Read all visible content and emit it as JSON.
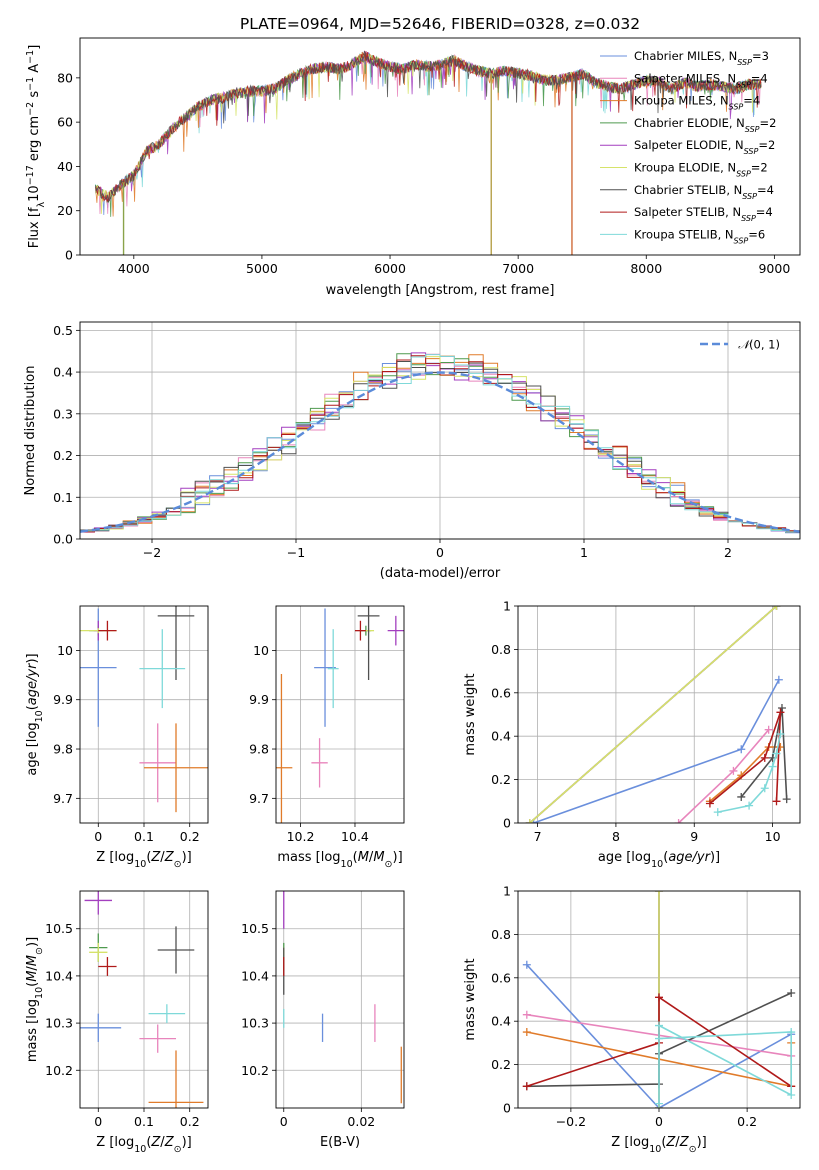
{
  "title": "PLATE=0964, MJD=52646, FIBERID=0328, z=0.032",
  "models": [
    {
      "name": "Chabrier MILES",
      "nssp": "3",
      "color": "#6a8fdc"
    },
    {
      "name": "Salpeter MILES",
      "nssp": "4",
      "color": "#e885bc"
    },
    {
      "name": "Kroupa MILES",
      "nssp": "4",
      "color": "#e07b2a"
    },
    {
      "name": "Chabrier ELODIE",
      "nssp": "2",
      "color": "#4f9a4f"
    },
    {
      "name": "Salpeter ELODIE",
      "nssp": "2",
      "color": "#a33fbf"
    },
    {
      "name": "Kroupa ELODIE",
      "nssp": "2",
      "color": "#d6e36a"
    },
    {
      "name": "Chabrier STELIB",
      "nssp": "4",
      "color": "#505050"
    },
    {
      "name": "Salpeter STELIB",
      "nssp": "4",
      "color": "#b01a1a"
    },
    {
      "name": "Kroupa STELIB",
      "nssp": "6",
      "color": "#7fd9d9"
    }
  ],
  "legend_suffix": "N",
  "legend_sub": "SSP",
  "chart_data": [
    {
      "id": "spectrum",
      "type": "line",
      "xlabel": "wavelength [Angstrom, rest frame]",
      "ylabel": "Flux [f",
      "xlim": [
        3580,
        9200
      ],
      "ylim": [
        0,
        98
      ],
      "xticks": [
        4000,
        5000,
        6000,
        7000,
        8000,
        9000
      ],
      "yticks": [
        0,
        20,
        40,
        60,
        80
      ],
      "grid": false,
      "legend": "top-right",
      "x": [
        3700,
        3800,
        3900,
        4000,
        4100,
        4200,
        4300,
        4400,
        4500,
        4600,
        4700,
        4800,
        4900,
        5000,
        5100,
        5200,
        5300,
        5400,
        5500,
        5600,
        5700,
        5800,
        5900,
        6000,
        6100,
        6200,
        6300,
        6400,
        6500,
        6600,
        6700,
        6800,
        6900,
        7000,
        7100,
        7200,
        7300,
        7400,
        7500,
        7600,
        7700,
        7800,
        7900,
        8000,
        8100,
        8200,
        8300,
        8400,
        8500,
        8600,
        8700,
        8800,
        8900
      ],
      "y": [
        30,
        26,
        32,
        36,
        47,
        50,
        57,
        62,
        67,
        70,
        71,
        73,
        74,
        74,
        75,
        79,
        82,
        84,
        85,
        84,
        86,
        90,
        87,
        85,
        84,
        86,
        85,
        86,
        88,
        85,
        83,
        82,
        83,
        82,
        81,
        79,
        79,
        80,
        82,
        78,
        76,
        75,
        77,
        79,
        78,
        75,
        78,
        76,
        77,
        76,
        75,
        77,
        77
      ],
      "dips": [
        {
          "x": 3920,
          "to": 0
        },
        {
          "x": 6790,
          "to": 0
        },
        {
          "x": 7420,
          "to": 0
        }
      ]
    },
    {
      "id": "residuals",
      "type": "histogram",
      "xlabel": "(data-model)/error",
      "ylabel": "Normed distribution",
      "xlim": [
        -2.5,
        2.5
      ],
      "ylim": [
        0,
        0.52
      ],
      "xticks": [
        -2,
        -1,
        0,
        1,
        2
      ],
      "yticks": [
        0.0,
        0.1,
        0.2,
        0.3,
        0.4,
        0.5
      ],
      "grid": true,
      "legend": "top-right",
      "reference": {
        "label": "N(0, 1)",
        "mean": 0,
        "sigma": 1,
        "color": "#5b8bd9"
      }
    },
    {
      "id": "age-vs-Z",
      "type": "errorbar",
      "xlabel": "Z [log10(Z/Z⊙)]",
      "ylabel": "age  [log10(age/yr)]",
      "xlim": [
        -0.04,
        0.24
      ],
      "ylim": [
        9.65,
        10.09
      ],
      "xticks": [
        0.0,
        0.1,
        0.2
      ],
      "yticks": [
        9.7,
        9.8,
        9.9,
        10.0
      ],
      "grid": true,
      "points": [
        {
          "x": 0.0,
          "xerr": 0.04,
          "y": 9.965,
          "yerr": 0.12,
          "color": "#6a8fdc"
        },
        {
          "x": 0.13,
          "xerr": 0.04,
          "y": 9.772,
          "yerr": 0.08,
          "color": "#e885bc"
        },
        {
          "x": 0.17,
          "xerr": 0.07,
          "y": 9.762,
          "yerr": 0.09,
          "color": "#e07b2a"
        },
        {
          "x": 0.0,
          "xerr": 0.02,
          "y": 10.04,
          "yerr": 0.01,
          "color": "#4f9a4f"
        },
        {
          "x": 0.0,
          "xerr": 0.01,
          "y": 10.04,
          "yerr": 0.02,
          "color": "#a33fbf"
        },
        {
          "x": 0.0,
          "xerr": 0.04,
          "y": 10.04,
          "yerr": 0.005,
          "color": "#d6e36a"
        },
        {
          "x": 0.17,
          "xerr": 0.04,
          "y": 10.07,
          "yerr": 0.13,
          "color": "#505050"
        },
        {
          "x": 0.02,
          "xerr": 0.02,
          "y": 10.04,
          "yerr": 0.02,
          "color": "#b01a1a"
        },
        {
          "x": 0.14,
          "xerr": 0.05,
          "y": 9.963,
          "yerr": 0.08,
          "color": "#7fd9d9"
        }
      ]
    },
    {
      "id": "age-vs-mass",
      "type": "errorbar",
      "xlabel": "mass [log10(M/M⊙)]",
      "ylabel": "",
      "xlim": [
        10.11,
        10.58
      ],
      "ylim": [
        9.65,
        10.09
      ],
      "xticks": [
        10.2,
        10.4
      ],
      "yticks": [
        9.7,
        9.8,
        9.9,
        10.0
      ],
      "grid": true,
      "points": [
        {
          "x": 10.29,
          "xerr": 0.04,
          "y": 9.965,
          "yerr": 0.12,
          "color": "#6a8fdc"
        },
        {
          "x": 10.27,
          "xerr": 0.03,
          "y": 9.772,
          "yerr": 0.05,
          "color": "#e885bc"
        },
        {
          "x": 10.13,
          "xerr": 0.04,
          "y": 9.762,
          "yerr": 0.19,
          "color": "#e07b2a"
        },
        {
          "x": 10.44,
          "xerr": 0.02,
          "y": 10.04,
          "yerr": 0.01,
          "color": "#4f9a4f"
        },
        {
          "x": 10.55,
          "xerr": 0.03,
          "y": 10.04,
          "yerr": 0.03,
          "color": "#a33fbf"
        },
        {
          "x": 10.45,
          "xerr": 0.02,
          "y": 10.04,
          "yerr": 0.005,
          "color": "#d6e36a"
        },
        {
          "x": 10.45,
          "xerr": 0.04,
          "y": 10.07,
          "yerr": 0.13,
          "color": "#505050"
        },
        {
          "x": 10.42,
          "xerr": 0.02,
          "y": 10.04,
          "yerr": 0.02,
          "color": "#b01a1a"
        },
        {
          "x": 10.32,
          "xerr": 0.02,
          "y": 9.963,
          "yerr": 0.08,
          "color": "#7fd9d9"
        }
      ]
    },
    {
      "id": "weight-vs-age",
      "type": "line",
      "xlabel": "age  [log10(age/yr)]",
      "ylabel": "mass weight",
      "xlim": [
        6.75,
        10.35
      ],
      "ylim": [
        0,
        1.0
      ],
      "xticks": [
        7,
        8,
        9,
        10
      ],
      "yticks": [
        0.0,
        0.2,
        0.4,
        0.6,
        0.8,
        1.0
      ],
      "grid": true,
      "series": [
        {
          "color": "#6a8fdc",
          "x": [
            6.95,
            9.6,
            10.08
          ],
          "y": [
            0.0,
            0.34,
            0.66
          ]
        },
        {
          "color": "#e885bc",
          "x": [
            8.8,
            9.5,
            9.95
          ],
          "y": [
            0.0,
            0.24,
            0.43
          ]
        },
        {
          "color": "#e07b2a",
          "x": [
            9.2,
            9.6,
            9.95,
            10.1
          ],
          "y": [
            0.1,
            0.22,
            0.35,
            0.35
          ]
        },
        {
          "color": "#4f9a4f",
          "x": [
            6.9,
            10.05
          ],
          "y": [
            0.0,
            1.0
          ]
        },
        {
          "color": "#a33fbf",
          "x": [
            6.9,
            10.05
          ],
          "y": [
            0.0,
            1.0
          ]
        },
        {
          "color": "#d6e36a",
          "x": [
            6.9,
            10.05
          ],
          "y": [
            0.0,
            1.0
          ]
        },
        {
          "color": "#505050",
          "x": [
            9.6,
            10.0,
            10.12,
            10.18
          ],
          "y": [
            0.12,
            0.3,
            0.53,
            0.11
          ]
        },
        {
          "color": "#b01a1a",
          "x": [
            9.2,
            9.9,
            10.1,
            10.05
          ],
          "y": [
            0.09,
            0.3,
            0.51,
            0.1
          ]
        },
        {
          "color": "#7fd9d9",
          "x": [
            9.3,
            9.7,
            9.9,
            10.0,
            10.05,
            10.1
          ],
          "y": [
            0.05,
            0.08,
            0.16,
            0.26,
            0.32,
            0.41
          ]
        }
      ]
    },
    {
      "id": "mass-vs-Z",
      "type": "errorbar",
      "xlabel": "Z [log10(Z/Z⊙)]",
      "ylabel": "mass [log10(M/M⊙)]",
      "xlim": [
        -0.04,
        0.24
      ],
      "ylim": [
        10.12,
        10.58
      ],
      "xticks": [
        0.0,
        0.1,
        0.2
      ],
      "yticks": [
        10.2,
        10.3,
        10.4,
        10.5
      ],
      "grid": true,
      "points": [
        {
          "x": 0.0,
          "xerr": 0.05,
          "y": 10.29,
          "yerr": 0.03,
          "color": "#6a8fdc"
        },
        {
          "x": 0.13,
          "xerr": 0.04,
          "y": 10.267,
          "yerr": 0.03,
          "color": "#e885bc"
        },
        {
          "x": 0.17,
          "xerr": 0.06,
          "y": 10.132,
          "yerr": 0.11,
          "color": "#e07b2a"
        },
        {
          "x": 0.0,
          "xerr": 0.02,
          "y": 10.46,
          "yerr": 0.03,
          "color": "#4f9a4f"
        },
        {
          "x": 0.0,
          "xerr": 0.03,
          "y": 10.56,
          "yerr": 0.03,
          "color": "#a33fbf"
        },
        {
          "x": 0.0,
          "xerr": 0.02,
          "y": 10.45,
          "yerr": 0.02,
          "color": "#d6e36a"
        },
        {
          "x": 0.17,
          "xerr": 0.04,
          "y": 10.455,
          "yerr": 0.05,
          "color": "#505050"
        },
        {
          "x": 0.02,
          "xerr": 0.02,
          "y": 10.42,
          "yerr": 0.02,
          "color": "#b01a1a"
        },
        {
          "x": 0.15,
          "xerr": 0.04,
          "y": 10.32,
          "yerr": 0.02,
          "color": "#7fd9d9"
        }
      ]
    },
    {
      "id": "mass-vs-EBV",
      "type": "errorbar",
      "xlabel": "E(B-V)",
      "ylabel": "",
      "xlim": [
        -0.002,
        0.031
      ],
      "ylim": [
        10.12,
        10.58
      ],
      "xticks": [
        0.0,
        0.02
      ],
      "yticks": [
        10.2,
        10.3,
        10.4,
        10.5
      ],
      "grid": true,
      "points": [
        {
          "x": 0.01,
          "xerr": 0,
          "y": 10.29,
          "yerr": 0.03,
          "color": "#6a8fdc"
        },
        {
          "x": 0.0235,
          "xerr": 0,
          "y": 10.3,
          "yerr": 0.04,
          "color": "#e885bc"
        },
        {
          "x": 0.0303,
          "xerr": 0,
          "y": 10.19,
          "yerr": 0.06,
          "color": "#e07b2a"
        },
        {
          "x": 0.0,
          "xerr": 0,
          "y": 10.44,
          "yerr": 0.03,
          "color": "#4f9a4f"
        },
        {
          "x": 0.0,
          "xerr": 0,
          "y": 10.54,
          "yerr": 0.04,
          "color": "#a33fbf"
        },
        {
          "x": 0.0,
          "xerr": 0,
          "y": 10.44,
          "yerr": 0.02,
          "color": "#d6e36a"
        },
        {
          "x": 0.0,
          "xerr": 0,
          "y": 10.41,
          "yerr": 0.05,
          "color": "#505050"
        },
        {
          "x": 0.0,
          "xerr": 0,
          "y": 10.42,
          "yerr": 0.02,
          "color": "#b01a1a"
        },
        {
          "x": 0.0,
          "xerr": 0,
          "y": 10.31,
          "yerr": 0.02,
          "color": "#7fd9d9"
        }
      ]
    },
    {
      "id": "weight-vs-Z",
      "type": "line",
      "xlabel": "Z [log10(Z/Z⊙)]",
      "ylabel": "mass weight",
      "xlim": [
        -0.32,
        0.32
      ],
      "ylim": [
        0,
        1.0
      ],
      "xticks": [
        -0.2,
        0.0,
        0.2
      ],
      "yticks": [
        0.0,
        0.2,
        0.4,
        0.6,
        0.8,
        1.0
      ],
      "grid": true,
      "series": [
        {
          "color": "#6a8fdc",
          "x": [
            -0.3,
            0.0,
            0.3
          ],
          "y": [
            0.66,
            0.0,
            0.34
          ]
        },
        {
          "color": "#e885bc",
          "x": [
            -0.3,
            0.3
          ],
          "y": [
            0.43,
            0.24
          ]
        },
        {
          "color": "#e07b2a",
          "x": [
            -0.3,
            0.3,
            0.3
          ],
          "y": [
            0.35,
            0.1,
            0.3
          ]
        },
        {
          "color": "#4f9a4f",
          "x": [
            0.0,
            0.0
          ],
          "y": [
            0.0,
            1.0
          ]
        },
        {
          "color": "#a33fbf",
          "x": [
            0.0,
            0.0
          ],
          "y": [
            0.0,
            1.0
          ]
        },
        {
          "color": "#d6e36a",
          "x": [
            0.0,
            0.0
          ],
          "y": [
            0.0,
            1.0
          ]
        },
        {
          "color": "#505050",
          "x": [
            -0.3,
            0.0,
            0.0,
            0.3
          ],
          "y": [
            0.1,
            0.11,
            0.25,
            0.53
          ]
        },
        {
          "color": "#b01a1a",
          "x": [
            -0.3,
            0.0,
            0.0,
            0.3
          ],
          "y": [
            0.1,
            0.3,
            0.51,
            0.1
          ]
        },
        {
          "color": "#7fd9d9",
          "x": [
            0.0,
            0.0,
            0.3,
            0.3,
            0.0
          ],
          "y": [
            0.02,
            0.38,
            0.06,
            0.35,
            0.32
          ]
        }
      ]
    }
  ]
}
